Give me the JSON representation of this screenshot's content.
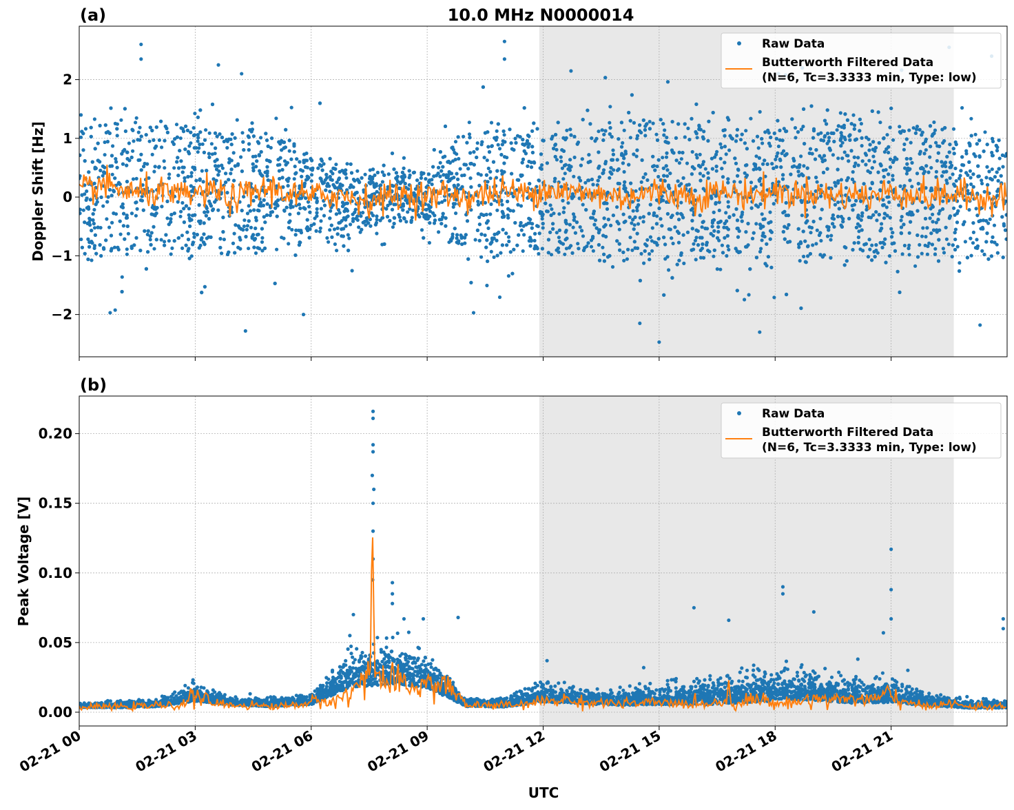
{
  "chart_data": [
    {
      "type": "scatter",
      "panel_label": "(a)",
      "title": "10.0 MHz N0000014",
      "xlabel": "",
      "ylabel": "Doppler Shift [Hz]",
      "xlim_hours": [
        0,
        24
      ],
      "ylim": [
        -2.72,
        2.91
      ],
      "yticks": [
        2,
        1,
        0,
        -1,
        -2
      ],
      "ytick_labels": [
        "2",
        "1",
        "0",
        "−1",
        "−2"
      ],
      "grid": true,
      "shaded_interval_hours": [
        11.9,
        22.62
      ],
      "legend": {
        "placement": "top-right",
        "entries": [
          "Raw Data",
          "Butterworth Filtered Data",
          "(N=6, Tc=3.3333 min, Type: low)"
        ]
      },
      "raw_envelope_hourly": {
        "center": [
          0.1,
          0.1,
          0.1,
          0.1,
          0.1,
          0.1,
          0.0,
          -0.1,
          0.0,
          0.0,
          0.1,
          0.1,
          0.1,
          0.1,
          0.1,
          0.1,
          0.1,
          0.1,
          0.1,
          0.1,
          0.1,
          0.1,
          0.1,
          0.0,
          0.0
        ],
        "spread": [
          1.1,
          1.2,
          1.1,
          1.1,
          1.1,
          1.1,
          0.7,
          0.6,
          0.45,
          0.45,
          1.1,
          1.1,
          1.1,
          1.1,
          1.2,
          1.2,
          1.2,
          1.2,
          1.2,
          1.2,
          1.2,
          1.2,
          1.2,
          1.1,
          1.1
        ]
      },
      "filtered_halfhourly": [
        0.1,
        0.2,
        0.15,
        0.05,
        0.1,
        0.0,
        0.05,
        0.1,
        -0.05,
        0.1,
        0.15,
        0.05,
        0.0,
        0.05,
        0.0,
        -0.05,
        0.0,
        0.05,
        0.0,
        0.05,
        0.0,
        0.05,
        0.1,
        0.05,
        0.15,
        0.1,
        0.05,
        0.05,
        0.0,
        0.05,
        0.1,
        0.05,
        0.0,
        0.1,
        0.05,
        0.05,
        0.1,
        0.05,
        0.1,
        0.0,
        0.05,
        0.0,
        0.1,
        0.05,
        0.0,
        0.05,
        0.0,
        0.0,
        0.05
      ],
      "outliers": [
        [
          1.6,
          2.6
        ],
        [
          1.6,
          2.35
        ],
        [
          3.6,
          2.25
        ],
        [
          4.2,
          2.1
        ],
        [
          11.0,
          2.65
        ],
        [
          11.0,
          2.35
        ],
        [
          22.5,
          2.55
        ],
        [
          23.6,
          2.4
        ],
        [
          4.3,
          -2.28
        ],
        [
          15.0,
          -2.47
        ],
        [
          14.5,
          -2.15
        ],
        [
          17.6,
          -2.3
        ],
        [
          23.3,
          -2.18
        ],
        [
          0.8,
          -1.97
        ],
        [
          5.8,
          -2.0
        ],
        [
          10.2,
          -1.97
        ]
      ]
    },
    {
      "type": "scatter",
      "panel_label": "(b)",
      "xlabel": "UTC",
      "ylabel": "Peak Voltage [V]",
      "xlim_hours": [
        0,
        24
      ],
      "ylim": [
        -0.0099,
        0.227
      ],
      "yticks": [
        0.2,
        0.15,
        0.1,
        0.05,
        0.0
      ],
      "ytick_labels": [
        "0.20",
        "0.15",
        "0.10",
        "0.05",
        "0.00"
      ],
      "xtick_labels": [
        "02-21 00",
        "02-21 03",
        "02-21 06",
        "02-21 09",
        "02-21 12",
        "02-21 15",
        "02-21 18",
        "02-21 21"
      ],
      "xtick_hours": [
        0,
        3,
        6,
        9,
        12,
        15,
        18,
        21
      ],
      "grid": true,
      "shaded_interval_hours": [
        11.9,
        22.62
      ],
      "legend": {
        "placement": "top-right",
        "entries": [
          "Raw Data",
          "Butterworth Filtered Data",
          "(N=6, Tc=3.3333 min, Type: low)"
        ]
      },
      "raw_envelope_hourly": {
        "center": [
          0.004,
          0.004,
          0.005,
          0.01,
          0.006,
          0.005,
          0.007,
          0.022,
          0.025,
          0.022,
          0.005,
          0.005,
          0.01,
          0.008,
          0.007,
          0.008,
          0.008,
          0.01,
          0.012,
          0.012,
          0.01,
          0.01,
          0.006,
          0.004,
          0.004
        ],
        "spread": [
          0.002,
          0.003,
          0.004,
          0.008,
          0.004,
          0.004,
          0.006,
          0.018,
          0.02,
          0.018,
          0.004,
          0.005,
          0.01,
          0.008,
          0.008,
          0.01,
          0.012,
          0.014,
          0.016,
          0.014,
          0.014,
          0.012,
          0.006,
          0.004,
          0.004
        ]
      },
      "filtered_halfhourly": [
        0.003,
        0.004,
        0.004,
        0.004,
        0.005,
        0.004,
        0.012,
        0.006,
        0.005,
        0.005,
        0.004,
        0.005,
        0.007,
        0.008,
        0.012,
        0.03,
        0.02,
        0.018,
        0.02,
        0.02,
        0.005,
        0.005,
        0.005,
        0.005,
        0.008,
        0.009,
        0.007,
        0.007,
        0.006,
        0.006,
        0.007,
        0.006,
        0.006,
        0.007,
        0.006,
        0.01,
        0.006,
        0.007,
        0.01,
        0.009,
        0.01,
        0.009,
        0.012,
        0.005,
        0.005,
        0.006,
        0.004,
        0.004,
        0.004
      ],
      "filtered_peaks": [
        [
          7.58,
          0.145
        ],
        [
          8.1,
          0.035
        ],
        [
          16.8,
          0.023
        ],
        [
          20.9,
          0.02
        ]
      ],
      "outliers": [
        [
          7.6,
          0.216
        ],
        [
          7.6,
          0.211
        ],
        [
          7.6,
          0.192
        ],
        [
          7.6,
          0.187
        ],
        [
          7.58,
          0.17
        ],
        [
          7.62,
          0.16
        ],
        [
          7.6,
          0.15
        ],
        [
          7.6,
          0.13
        ],
        [
          7.6,
          0.11
        ],
        [
          7.59,
          0.095
        ],
        [
          8.1,
          0.093
        ],
        [
          8.1,
          0.085
        ],
        [
          8.1,
          0.078
        ],
        [
          8.4,
          0.067
        ],
        [
          8.9,
          0.067
        ],
        [
          9.8,
          0.068
        ],
        [
          7.0,
          0.055
        ],
        [
          21.0,
          0.117
        ],
        [
          21.0,
          0.088
        ],
        [
          21.0,
          0.067
        ],
        [
          18.2,
          0.09
        ],
        [
          18.2,
          0.085
        ],
        [
          19.0,
          0.072
        ],
        [
          15.9,
          0.075
        ],
        [
          16.8,
          0.066
        ],
        [
          23.9,
          0.067
        ],
        [
          23.9,
          0.06
        ],
        [
          20.8,
          0.057
        ],
        [
          14.6,
          0.032
        ],
        [
          12.1,
          0.037
        ]
      ]
    }
  ],
  "colors": {
    "raw": "#1f77b4",
    "filtered": "#ff7f0e",
    "shade": "#e8e8e8",
    "grid": "#b0b0b0"
  }
}
